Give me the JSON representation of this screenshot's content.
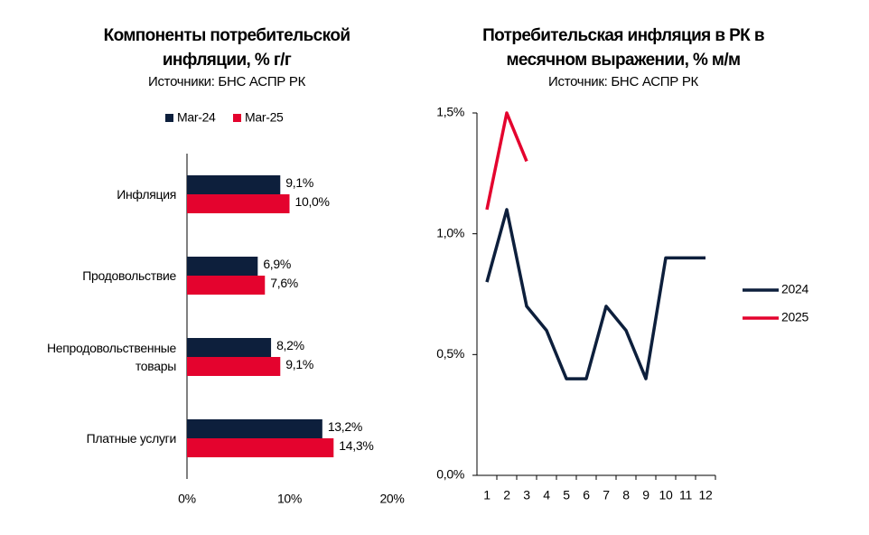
{
  "chart_data": [
    {
      "type": "hbar",
      "title": "Компоненты потребительской инфляции, % г/г",
      "subtitle": "Источники: БНС АСПР РК",
      "categories": [
        "Инфляция",
        "Продовольствие",
        "Непродовольственные товары",
        "Платные услуги"
      ],
      "series": [
        {
          "name": "Mar-24",
          "color": "#0d1f3c",
          "values": [
            9.1,
            6.9,
            8.2,
            13.2
          ],
          "value_labels": [
            "9,1%",
            "6,9%",
            "8,2%",
            "13,2%"
          ]
        },
        {
          "name": "Mar-25",
          "color": "#e4032e",
          "values": [
            10.0,
            7.6,
            9.1,
            14.3
          ],
          "value_labels": [
            "10,0%",
            "7,6%",
            "9,1%",
            "14,3%"
          ]
        }
      ],
      "xlim": [
        0,
        20
      ],
      "xticks": [
        {
          "value": 0,
          "label": "0%"
        },
        {
          "value": 10,
          "label": "10%"
        },
        {
          "value": 20,
          "label": "20%"
        }
      ],
      "legend": "top"
    },
    {
      "type": "line",
      "title": "Потребительская инфляция в РК в месячном выражении, % м/м",
      "subtitle": "Источник: БНС АСПР РК",
      "categories": [
        "1",
        "2",
        "3",
        "4",
        "5",
        "6",
        "7",
        "8",
        "9",
        "10",
        "11",
        "12"
      ],
      "series": [
        {
          "name": "2024",
          "color": "#0d1f3c",
          "values": [
            0.8,
            1.1,
            0.7,
            0.6,
            0.4,
            0.4,
            0.7,
            0.6,
            0.4,
            0.9,
            0.9,
            0.9
          ]
        },
        {
          "name": "2025",
          "color": "#e4032e",
          "values": [
            1.1,
            1.5,
            1.3,
            null,
            null,
            null,
            null,
            null,
            null,
            null,
            null,
            null
          ]
        }
      ],
      "ylim": [
        0,
        1.5
      ],
      "yticks": [
        {
          "value": 0,
          "label": "0,0%"
        },
        {
          "value": 0.5,
          "label": "0,5%"
        },
        {
          "value": 1.0,
          "label": "1,0%"
        },
        {
          "value": 1.5,
          "label": "1,5%"
        }
      ],
      "legend": "right"
    }
  ]
}
